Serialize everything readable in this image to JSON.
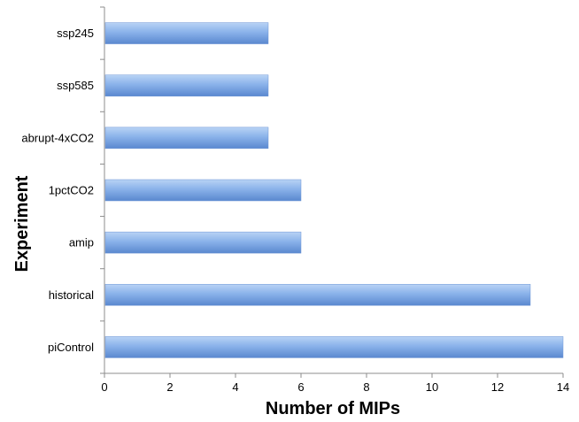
{
  "chart_data": {
    "type": "bar",
    "orientation": "horizontal",
    "title": "",
    "xlabel": "Number of MIPs",
    "ylabel": "Experiment",
    "categories": [
      "ssp245",
      "ssp585",
      "abrupt-4xCO2",
      "1pctCO2",
      "amip",
      "historical",
      "piControl"
    ],
    "values": [
      5,
      5,
      5,
      6,
      6,
      13,
      14
    ],
    "xlim": [
      0,
      14
    ],
    "xticks": [
      0,
      2,
      4,
      6,
      8,
      10,
      12,
      14
    ],
    "grid": false,
    "legend": "none",
    "colors": {
      "bar_light": "#b9d3f5",
      "bar_mid": "#8ab2ea",
      "bar_dark": "#5a88cf",
      "axis": "#8c8c8c"
    }
  }
}
